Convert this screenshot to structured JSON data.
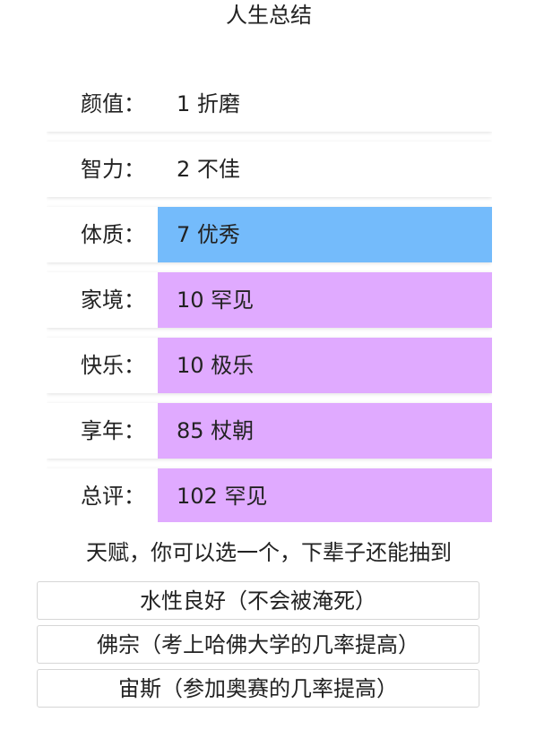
{
  "title": "人生总结",
  "colors": {
    "white": "#ffffff",
    "blue": "#74bbfb",
    "purple": "#e0aaff"
  },
  "stats": [
    {
      "label": "颜值：",
      "value": "1 折磨",
      "color": "#ffffff"
    },
    {
      "label": "智力：",
      "value": "2 不佳",
      "color": "#ffffff"
    },
    {
      "label": "体质：",
      "value": "7 优秀",
      "color": "#74bbfb"
    },
    {
      "label": "家境：",
      "value": "10 罕见",
      "color": "#e0aaff"
    },
    {
      "label": "快乐：",
      "value": "10 极乐",
      "color": "#e0aaff"
    },
    {
      "label": "享年：",
      "value": "85 杖朝",
      "color": "#e0aaff"
    },
    {
      "label": "总评：",
      "value": "102 罕见",
      "color": "#e0aaff"
    }
  ],
  "talent_prompt": "天赋，你可以选一个，下辈子还能抽到",
  "talents": [
    {
      "label": "水性良好（不会被淹死）"
    },
    {
      "label": "佛宗（考上哈佛大学的几率提高）"
    },
    {
      "label": "宙斯（参加奥赛的几率提高）"
    }
  ]
}
